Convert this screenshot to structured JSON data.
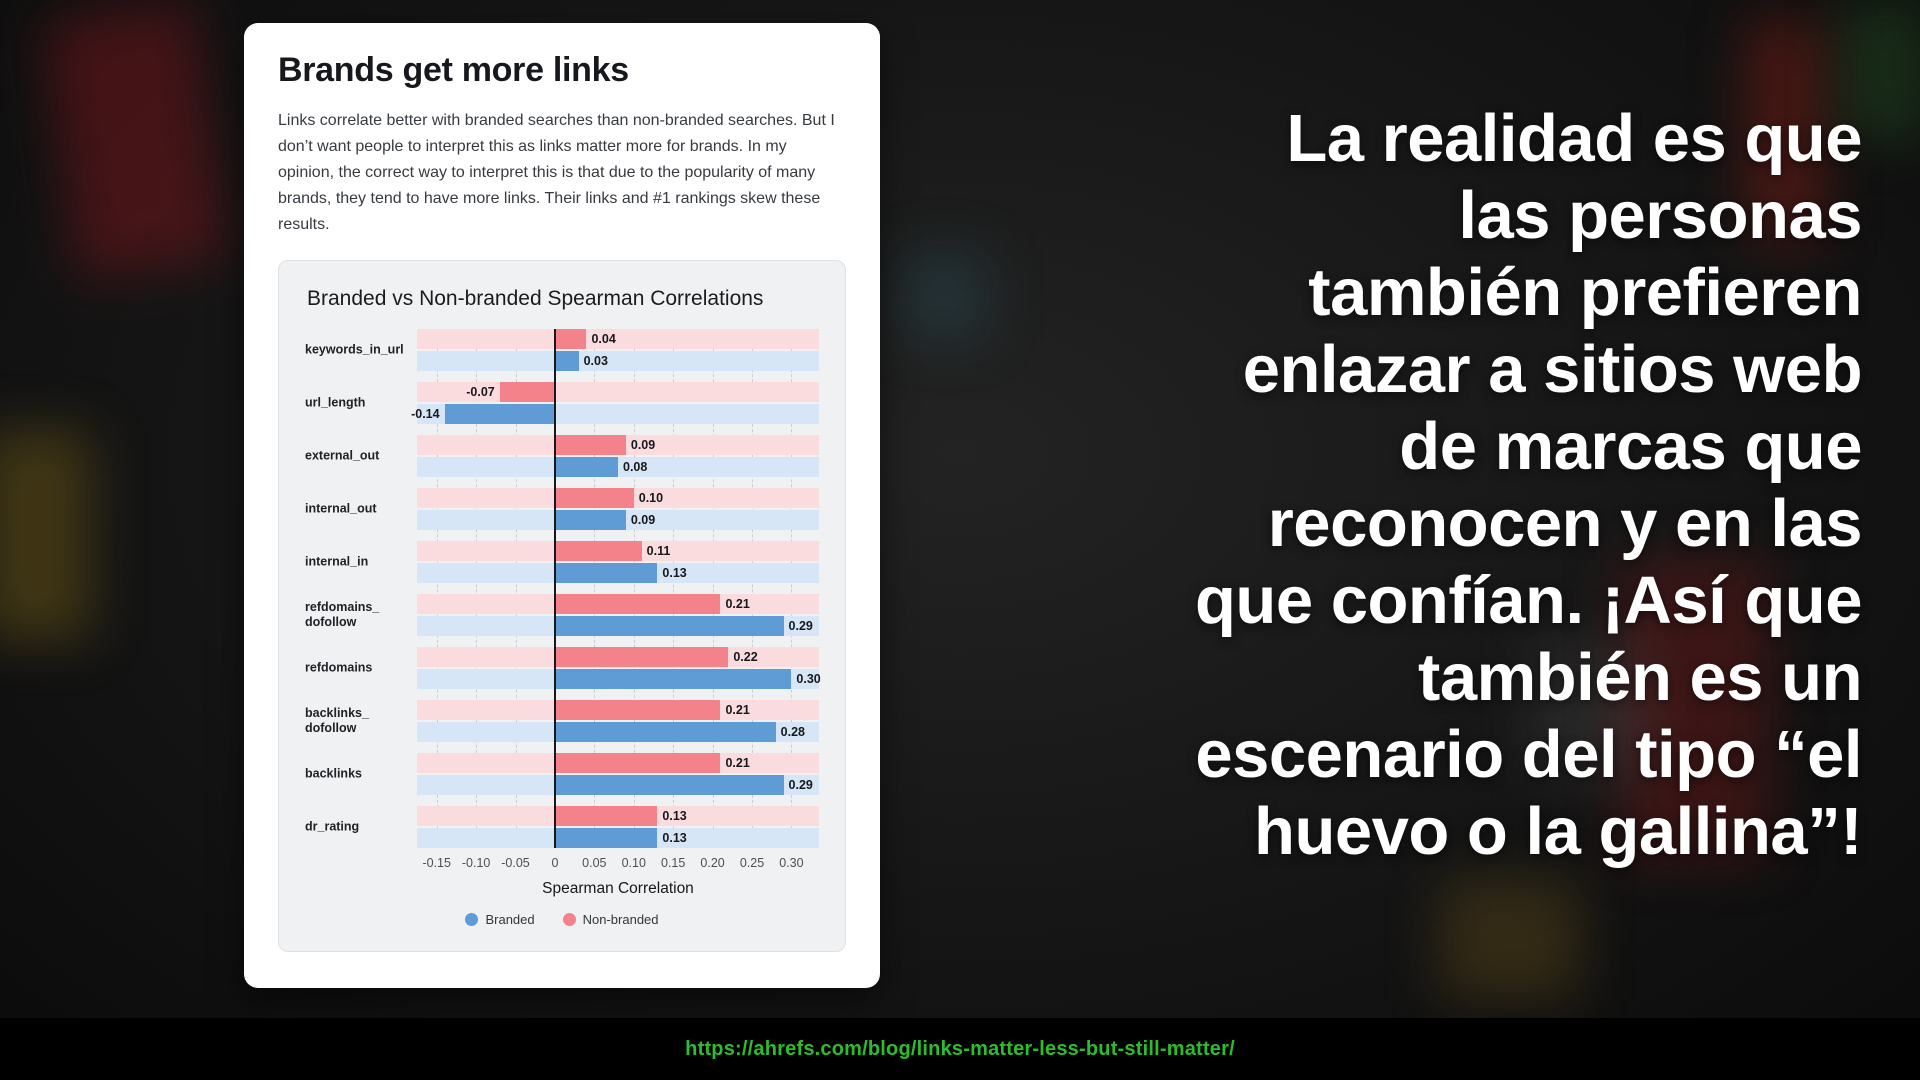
{
  "card": {
    "title": "Brands get more links",
    "description": "Links correlate better with branded searches than non-branded searches. But I don’t want people to interpret this as links matter more for brands. In my opinion, the correct way to interpret this is that due to the popularity of many brands, they tend to have more links. Their links and #1 rankings skew these results."
  },
  "chart_data": {
    "type": "bar",
    "orientation": "horizontal",
    "title": "Branded vs Non-branded Spearman Correlations",
    "xlabel": "Spearman Correlation",
    "xlim": [
      -0.175,
      0.335
    ],
    "grid": true,
    "legend_position": "bottom",
    "categories": [
      "keywords_in_url",
      "url_length",
      "external_out",
      "internal_out",
      "internal_in",
      "refdomains_\ndofollow",
      "refdomains",
      "backlinks_\ndofollow",
      "backlinks",
      "dr_rating"
    ],
    "series": [
      {
        "name": "Non-branded",
        "color": "#f3828a",
        "band_color": "#fadcdf",
        "values": [
          0.04,
          -0.07,
          0.09,
          0.1,
          0.11,
          0.21,
          0.22,
          0.21,
          0.21,
          0.13
        ]
      },
      {
        "name": "Branded",
        "color": "#5f9cd6",
        "band_color": "#d7e6f7",
        "values": [
          0.03,
          -0.14,
          0.08,
          0.09,
          0.13,
          0.29,
          0.3,
          0.28,
          0.29,
          0.13
        ]
      }
    ],
    "xticks": [
      {
        "v": -0.15,
        "label": "-0.15"
      },
      {
        "v": -0.1,
        "label": "-0.10"
      },
      {
        "v": -0.05,
        "label": "-0.05"
      },
      {
        "v": 0,
        "label": "0"
      },
      {
        "v": 0.05,
        "label": "0.05"
      },
      {
        "v": 0.1,
        "label": "0.10"
      },
      {
        "v": 0.15,
        "label": "0.15"
      },
      {
        "v": 0.2,
        "label": "0.20"
      },
      {
        "v": 0.25,
        "label": "0.25"
      },
      {
        "v": 0.3,
        "label": "0.30"
      }
    ],
    "legend": [
      {
        "label": "Branded",
        "color": "#5f9cd6"
      },
      {
        "label": "Non-branded",
        "color": "#f3828a"
      }
    ]
  },
  "quote": {
    "text": "La realidad es que\nlas personas\ntambién prefieren\nenlazar a sitios web\nde marcas que\nreconocen y en las\nque confían. ¡Así que\ntambién es un\nescenario del tipo “el\nhuevo o la gallina”!"
  },
  "footer": {
    "url": "https://ahrefs.com/blog/links-matter-less-but-still-matter/"
  }
}
